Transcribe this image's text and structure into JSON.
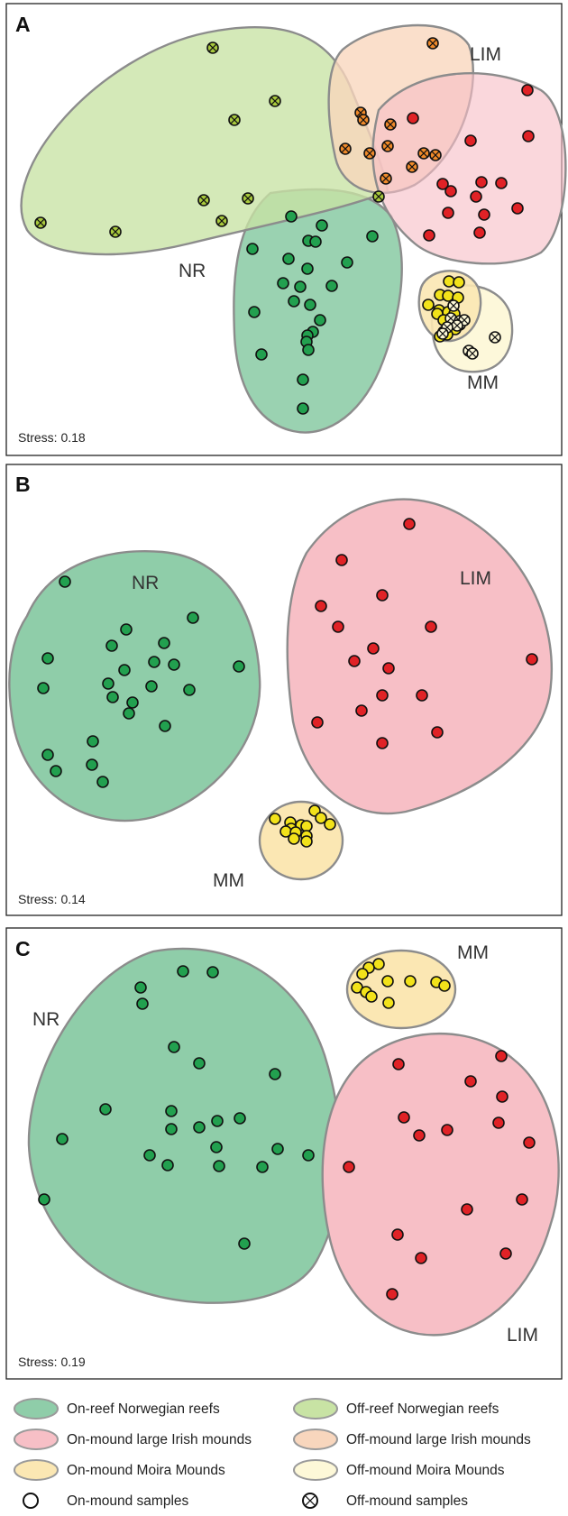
{
  "colors": {
    "on_reef_norwegian": "#8fcda9",
    "off_reef_norwegian": "#c8e3a4",
    "on_mound_irish": "#f7bfc6",
    "off_mound_irish": "#f8d6bd",
    "on_mound_moira": "#fbe7b3",
    "off_mound_moira": "#fdf8d8",
    "nr_point": "#22a04f",
    "lim_point": "#e02226",
    "mm_point": "#f2e21a",
    "off_nr_point": "#a8c93d",
    "off_lim_point": "#f08a2a"
  },
  "legend": {
    "items": [
      {
        "label": "On-reef Norwegian reefs",
        "kind": "ellipse",
        "color": "#8fcda9"
      },
      {
        "label": "Off-reef Norwegian reefs",
        "kind": "ellipse",
        "color": "#c8e3a4"
      },
      {
        "label": "On-mound large Irish mounds",
        "kind": "ellipse",
        "color": "#f7bfc6"
      },
      {
        "label": "Off-mound large Irish mounds",
        "kind": "ellipse",
        "color": "#f8d6bd"
      },
      {
        "label": "On-mound Moira Mounds",
        "kind": "ellipse",
        "color": "#fbe7b3"
      },
      {
        "label": "Off-mound Moira Mounds",
        "kind": "ellipse",
        "color": "#fdf8d8"
      },
      {
        "label": "On-mound samples",
        "kind": "circle",
        "color": "#ffffff"
      },
      {
        "label": "Off-mound samples",
        "kind": "cross-circle",
        "color": "#ffffff"
      }
    ]
  },
  "chart_data": [
    {
      "type": "scatter",
      "panel": "A",
      "stress": "Stress: 0.18",
      "group_labels": [
        "LIM",
        "NR",
        "MM"
      ],
      "xlim": [
        0,
        630
      ],
      "ylim": [
        0,
        500
      ],
      "series": [
        {
          "group": "NR",
          "sample": "off",
          "color": "#a8c93d",
          "points": [
            [
              236,
              53
            ],
            [
              305,
              112
            ],
            [
              260,
              133
            ],
            [
              45,
              247
            ],
            [
              128,
              257
            ],
            [
              226,
              222
            ],
            [
              246,
              245
            ],
            [
              275,
              220
            ],
            [
              420,
              218
            ]
          ]
        },
        {
          "group": "NR",
          "sample": "on",
          "color": "#22a04f",
          "points": [
            [
              323,
              240
            ],
            [
              357,
              250
            ],
            [
              342,
              267
            ],
            [
              350,
              268
            ],
            [
              413,
              262
            ],
            [
              280,
              276
            ],
            [
              320,
              287
            ],
            [
              385,
              291
            ],
            [
              341,
              298
            ],
            [
              314,
              314
            ],
            [
              333,
              318
            ],
            [
              368,
              317
            ],
            [
              326,
              334
            ],
            [
              344,
              338
            ],
            [
              355,
              355
            ],
            [
              282,
              346
            ],
            [
              347,
              368
            ],
            [
              341,
              372
            ],
            [
              340,
              379
            ],
            [
              342,
              388
            ],
            [
              290,
              393
            ],
            [
              336,
              421
            ],
            [
              336,
              453
            ]
          ]
        },
        {
          "group": "LIM",
          "sample": "off",
          "color": "#f08a2a",
          "points": [
            [
              480,
              48
            ],
            [
              400,
              125
            ],
            [
              403,
              133
            ],
            [
              433,
              138
            ],
            [
              383,
              165
            ],
            [
              410,
              170
            ],
            [
              430,
              162
            ],
            [
              470,
              170
            ],
            [
              457,
              185
            ],
            [
              483,
              172
            ],
            [
              428,
              198
            ]
          ]
        },
        {
          "group": "LIM",
          "sample": "on",
          "color": "#e02226",
          "points": [
            [
              585,
              100
            ],
            [
              458,
              131
            ],
            [
              586,
              151
            ],
            [
              522,
              156
            ],
            [
              491,
              204
            ],
            [
              534,
              202
            ],
            [
              556,
              203
            ],
            [
              500,
              212
            ],
            [
              528,
              218
            ],
            [
              497,
              236
            ],
            [
              537,
              238
            ],
            [
              574,
              231
            ],
            [
              476,
              261
            ],
            [
              532,
              258
            ]
          ]
        },
        {
          "group": "MM",
          "sample": "on",
          "color": "#f2e21a",
          "points": [
            [
              498,
              312
            ],
            [
              509,
              313
            ],
            [
              488,
              327
            ],
            [
              497,
              328
            ],
            [
              508,
              330
            ],
            [
              475,
              338
            ],
            [
              487,
              344
            ],
            [
              497,
              346
            ],
            [
              485,
              348
            ],
            [
              504,
              348
            ],
            [
              492,
              355
            ],
            [
              500,
              362
            ],
            [
              505,
              365
            ],
            [
              492,
              368
            ],
            [
              496,
              371
            ],
            [
              488,
              373
            ]
          ]
        },
        {
          "group": "MM",
          "sample": "off",
          "color": "#fdf8d8",
          "points": [
            [
              503,
              339
            ],
            [
              500,
              353
            ],
            [
              510,
              356
            ],
            [
              510,
              360
            ],
            [
              515,
              355
            ],
            [
              507,
              361
            ],
            [
              496,
              363
            ],
            [
              491,
              370
            ],
            [
              520,
              389
            ],
            [
              524,
              392
            ],
            [
              549,
              374
            ]
          ]
        }
      ]
    },
    {
      "type": "scatter",
      "panel": "B",
      "stress": "Stress: 0.14",
      "group_labels": [
        "NR",
        "LIM",
        "MM"
      ],
      "xlim": [
        0,
        630
      ],
      "ylim": [
        0,
        500
      ],
      "series": [
        {
          "group": "NR",
          "sample": "on",
          "color": "#22a04f",
          "points": [
            [
              72,
              130
            ],
            [
              214,
              170
            ],
            [
              140,
              183
            ],
            [
              124,
              201
            ],
            [
              182,
              198
            ],
            [
              53,
              215
            ],
            [
              171,
              219
            ],
            [
              193,
              222
            ],
            [
              138,
              228
            ],
            [
              265,
              224
            ],
            [
              120,
              243
            ],
            [
              48,
              248
            ],
            [
              168,
              246
            ],
            [
              210,
              250
            ],
            [
              125,
              258
            ],
            [
              147,
              264
            ],
            [
              143,
              276
            ],
            [
              183,
              290
            ],
            [
              103,
              307
            ],
            [
              53,
              322
            ],
            [
              102,
              333
            ],
            [
              62,
              340
            ],
            [
              114,
              352
            ]
          ]
        },
        {
          "group": "LIM",
          "sample": "on",
          "color": "#e02226",
          "points": [
            [
              454,
              66
            ],
            [
              379,
              106
            ],
            [
              424,
              145
            ],
            [
              356,
              157
            ],
            [
              375,
              180
            ],
            [
              478,
              180
            ],
            [
              414,
              204
            ],
            [
              393,
              218
            ],
            [
              590,
              216
            ],
            [
              431,
              226
            ],
            [
              424,
              256
            ],
            [
              468,
              256
            ],
            [
              401,
              273
            ],
            [
              352,
              286
            ],
            [
              485,
              297
            ],
            [
              424,
              309
            ]
          ]
        },
        {
          "group": "MM",
          "sample": "on",
          "color": "#f2e21a",
          "points": [
            [
              349,
              384
            ],
            [
              356,
              392
            ],
            [
              305,
              393
            ],
            [
              322,
              397
            ],
            [
              366,
              399
            ],
            [
              334,
              400
            ],
            [
              340,
              401
            ],
            [
              323,
              404
            ],
            [
              317,
              407
            ],
            [
              328,
              408
            ],
            [
              340,
              412
            ],
            [
              326,
              415
            ],
            [
              340,
              418
            ]
          ]
        }
      ]
    },
    {
      "type": "scatter",
      "panel": "C",
      "stress": "Stress: 0.19",
      "group_labels": [
        "MM",
        "NR",
        "LIM"
      ],
      "xlim": [
        0,
        630
      ],
      "ylim": [
        0,
        500
      ],
      "series": [
        {
          "group": "MM",
          "sample": "on",
          "color": "#f2e21a",
          "points": [
            [
              420,
              40
            ],
            [
              409,
              44
            ],
            [
              402,
              51
            ],
            [
              430,
              59
            ],
            [
              455,
              59
            ],
            [
              484,
              60
            ],
            [
              493,
              64
            ],
            [
              396,
              66
            ],
            [
              406,
              71
            ],
            [
              412,
              76
            ],
            [
              431,
              83
            ]
          ]
        },
        {
          "group": "NR",
          "sample": "on",
          "color": "#22a04f",
          "points": [
            [
              203,
              48
            ],
            [
              236,
              49
            ],
            [
              156,
              66
            ],
            [
              158,
              84
            ],
            [
              193,
              132
            ],
            [
              221,
              150
            ],
            [
              305,
              162
            ],
            [
              117,
              201
            ],
            [
              190,
              203
            ],
            [
              266,
              211
            ],
            [
              190,
              223
            ],
            [
              221,
              221
            ],
            [
              241,
              214
            ],
            [
              69,
              234
            ],
            [
              240,
              243
            ],
            [
              308,
              245
            ],
            [
              166,
              252
            ],
            [
              186,
              263
            ],
            [
              243,
              264
            ],
            [
              291,
              265
            ],
            [
              342,
              252
            ],
            [
              49,
              301
            ],
            [
              271,
              350
            ]
          ]
        },
        {
          "group": "LIM",
          "sample": "on",
          "color": "#e02226",
          "points": [
            [
              556,
              142
            ],
            [
              442,
              151
            ],
            [
              522,
              170
            ],
            [
              557,
              187
            ],
            [
              448,
              210
            ],
            [
              553,
              216
            ],
            [
              465,
              230
            ],
            [
              496,
              224
            ],
            [
              587,
              238
            ],
            [
              387,
              265
            ],
            [
              579,
              301
            ],
            [
              518,
              312
            ],
            [
              441,
              340
            ],
            [
              561,
              361
            ],
            [
              467,
              366
            ],
            [
              435,
              406
            ]
          ]
        }
      ]
    }
  ]
}
